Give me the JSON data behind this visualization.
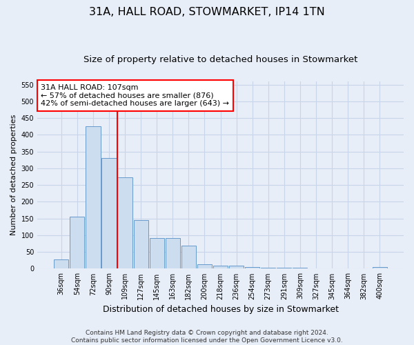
{
  "title": "31A, HALL ROAD, STOWMARKET, IP14 1TN",
  "subtitle": "Size of property relative to detached houses in Stowmarket",
  "xlabel": "Distribution of detached houses by size in Stowmarket",
  "ylabel": "Number of detached properties",
  "categories": [
    "36sqm",
    "54sqm",
    "72sqm",
    "90sqm",
    "109sqm",
    "127sqm",
    "145sqm",
    "163sqm",
    "182sqm",
    "200sqm",
    "218sqm",
    "236sqm",
    "254sqm",
    "273sqm",
    "291sqm",
    "309sqm",
    "327sqm",
    "345sqm",
    "364sqm",
    "382sqm",
    "400sqm"
  ],
  "values": [
    27,
    155,
    425,
    330,
    272,
    145,
    92,
    92,
    68,
    13,
    10,
    10,
    5,
    2,
    2,
    2,
    1,
    1,
    1,
    1,
    4
  ],
  "bar_color": "#ccddf0",
  "bar_edge_color": "#6699cc",
  "vline_x_index": 4,
  "vline_color": "red",
  "annotation_text": "31A HALL ROAD: 107sqm\n← 57% of detached houses are smaller (876)\n42% of semi-detached houses are larger (643) →",
  "annotation_box_color": "white",
  "annotation_box_edge_color": "red",
  "ylim": [
    0,
    560
  ],
  "yticks": [
    0,
    50,
    100,
    150,
    200,
    250,
    300,
    350,
    400,
    450,
    500,
    550
  ],
  "grid_color": "#c8d4e8",
  "background_color": "#e8eef8",
  "footnote": "Contains HM Land Registry data © Crown copyright and database right 2024.\nContains public sector information licensed under the Open Government Licence v3.0.",
  "title_fontsize": 11.5,
  "subtitle_fontsize": 9.5,
  "xlabel_fontsize": 9,
  "ylabel_fontsize": 8,
  "tick_fontsize": 7,
  "annot_fontsize": 8,
  "footnote_fontsize": 6.5
}
